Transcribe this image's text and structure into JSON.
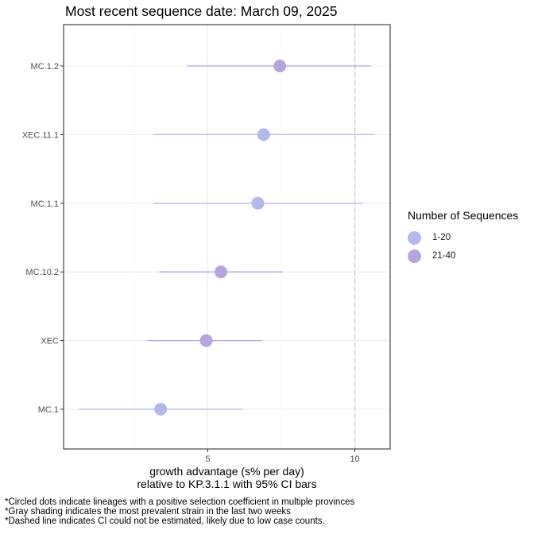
{
  "title": "Most recent sequence date: March 09, 2025",
  "xlabel_line1": "growth advantage (s% per day)",
  "xlabel_line2": "relative to  KP.3.1.1  with 95% CI bars",
  "legend": {
    "title": "Number of Sequences",
    "items": [
      {
        "label": "1-20",
        "color": "#B3B9E8"
      },
      {
        "label": "21-40",
        "color": "#B5A4DE"
      }
    ]
  },
  "footnotes": [
    "*Circled dots indicate lineages with a positive selection coefficient in multiple provinces",
    "*Gray shading indicates the most prevalent strain in the last two weeks",
    "*Dashed line indicates CI could not be estimated, likely due to low case counts."
  ],
  "chart_data": {
    "type": "scatter",
    "categories": [
      "MC.1.2",
      "XEC.11.1",
      "MC.1.1",
      "MC.10.2",
      "XEC",
      "MC.1"
    ],
    "points": [
      {
        "lineage": "MC.1.2",
        "estimate": 7.45,
        "ci_low": 4.3,
        "ci_high": 10.55,
        "group": "21-40"
      },
      {
        "lineage": "XEC.11.1",
        "estimate": 6.9,
        "ci_low": 3.15,
        "ci_high": 10.65,
        "group": "1-20"
      },
      {
        "lineage": "MC.1.1",
        "estimate": 6.7,
        "ci_low": 3.15,
        "ci_high": 10.25,
        "group": "1-20"
      },
      {
        "lineage": "MC.10.2",
        "estimate": 5.45,
        "ci_low": 3.35,
        "ci_high": 7.55,
        "group": "21-40"
      },
      {
        "lineage": "XEC",
        "estimate": 4.95,
        "ci_low": 2.95,
        "ci_high": 6.85,
        "group": "21-40"
      },
      {
        "lineage": "MC.1",
        "estimate": 3.4,
        "ci_low": 0.6,
        "ci_high": 6.2,
        "group": "1-20"
      }
    ],
    "x_ticks": [
      5,
      10
    ],
    "xlim": [
      0.1,
      11.2
    ],
    "dashed_line_x": 10,
    "grid": true
  }
}
